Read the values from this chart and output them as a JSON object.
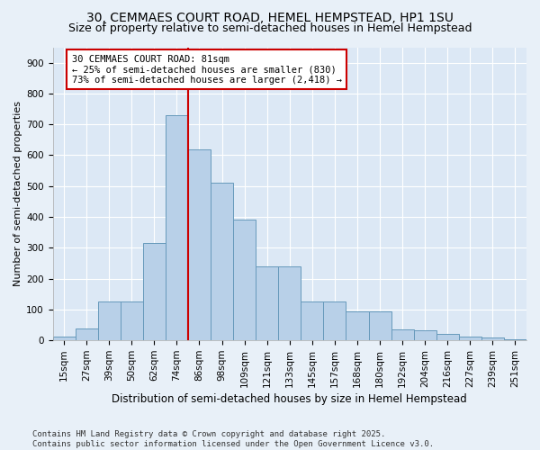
{
  "title": "30, CEMMAES COURT ROAD, HEMEL HEMPSTEAD, HP1 1SU",
  "subtitle": "Size of property relative to semi-detached houses in Hemel Hempstead",
  "xlabel": "Distribution of semi-detached houses by size in Hemel Hempstead",
  "ylabel": "Number of semi-detached properties",
  "categories": [
    "15sqm",
    "27sqm",
    "39sqm",
    "50sqm",
    "62sqm",
    "74sqm",
    "86sqm",
    "98sqm",
    "109sqm",
    "121sqm",
    "133sqm",
    "145sqm",
    "157sqm",
    "168sqm",
    "180sqm",
    "192sqm",
    "204sqm",
    "216sqm",
    "227sqm",
    "239sqm",
    "251sqm"
  ],
  "values": [
    12,
    38,
    125,
    125,
    315,
    730,
    620,
    510,
    390,
    240,
    240,
    125,
    125,
    93,
    93,
    35,
    32,
    20,
    12,
    10,
    3
  ],
  "bar_color": "#b8d0e8",
  "bar_edge_color": "#6699bb",
  "vline_position": 5.5,
  "vline_color": "#cc0000",
  "annotation_text": "30 CEMMAES COURT ROAD: 81sqm\n← 25% of semi-detached houses are smaller (830)\n73% of semi-detached houses are larger (2,418) →",
  "annotation_box_edge": "#cc0000",
  "annotation_fontsize": 7.5,
  "ylim": [
    0,
    950
  ],
  "yticks": [
    0,
    100,
    200,
    300,
    400,
    500,
    600,
    700,
    800,
    900
  ],
  "bg_color": "#dce8f5",
  "fig_bg_color": "#e8f0f8",
  "footer": "Contains HM Land Registry data © Crown copyright and database right 2025.\nContains public sector information licensed under the Open Government Licence v3.0.",
  "title_fontsize": 10,
  "subtitle_fontsize": 9,
  "xlabel_fontsize": 8.5,
  "ylabel_fontsize": 8,
  "tick_fontsize": 7.5,
  "footer_fontsize": 6.5
}
